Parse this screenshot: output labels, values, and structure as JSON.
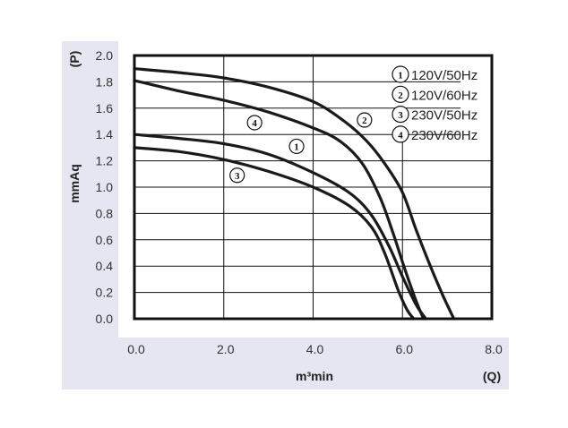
{
  "chart_data": {
    "type": "line",
    "title": "",
    "xlabel": "m³min",
    "xlabel_unit": "(Q)",
    "ylabel": "mmAq",
    "ylabel_unit": "(P)",
    "xlim": [
      0,
      8
    ],
    "ylim": [
      0,
      2
    ],
    "xticks": [
      "0.0",
      "2.0",
      "4.0",
      "6.0",
      "8.0"
    ],
    "yticks": [
      "0.0",
      "0.2",
      "0.4",
      "0.6",
      "0.8",
      "1.0",
      "1.2",
      "1.4",
      "1.6",
      "1.8",
      "2.0"
    ],
    "grid": true,
    "legend_position": "top-right",
    "series": [
      {
        "id": "1",
        "name": "120V/50Hz",
        "marker_at": [
          3.63,
          1.31
        ],
        "points": [
          [
            0,
            1.4
          ],
          [
            1,
            1.37
          ],
          [
            2,
            1.33
          ],
          [
            3,
            1.25
          ],
          [
            4,
            1.11
          ],
          [
            4.8,
            0.96
          ],
          [
            5.3,
            0.79
          ],
          [
            5.7,
            0.55
          ],
          [
            6.0,
            0.32
          ],
          [
            6.3,
            0.11
          ],
          [
            6.52,
            0
          ]
        ]
      },
      {
        "id": "2",
        "name": "120V/60Hz",
        "marker_at": [
          5.15,
          1.51
        ],
        "points": [
          [
            0,
            1.9
          ],
          [
            1,
            1.87
          ],
          [
            2,
            1.83
          ],
          [
            3,
            1.76
          ],
          [
            4,
            1.65
          ],
          [
            4.7,
            1.5
          ],
          [
            5.2,
            1.35
          ],
          [
            5.6,
            1.18
          ],
          [
            6.0,
            0.96
          ],
          [
            6.3,
            0.68
          ],
          [
            6.6,
            0.42
          ],
          [
            6.9,
            0.18
          ],
          [
            7.15,
            0
          ]
        ]
      },
      {
        "id": "3",
        "name": "230V/50Hz",
        "marker_at": [
          2.3,
          1.09
        ],
        "points": [
          [
            0,
            1.3
          ],
          [
            1,
            1.27
          ],
          [
            2,
            1.21
          ],
          [
            3,
            1.12
          ],
          [
            4,
            1.0
          ],
          [
            4.8,
            0.86
          ],
          [
            5.3,
            0.7
          ],
          [
            5.6,
            0.5
          ],
          [
            5.9,
            0.22
          ],
          [
            6.1,
            0.07
          ],
          [
            6.25,
            0
          ]
        ]
      },
      {
        "id": "4",
        "name": "230V/60Hz",
        "marker_at": [
          2.69,
          1.49
        ],
        "points": [
          [
            0,
            1.81
          ],
          [
            1,
            1.73
          ],
          [
            2,
            1.66
          ],
          [
            3,
            1.57
          ],
          [
            4,
            1.45
          ],
          [
            4.6,
            1.35
          ],
          [
            5.1,
            1.18
          ],
          [
            5.5,
            0.92
          ],
          [
            5.8,
            0.64
          ],
          [
            6.05,
            0.38
          ],
          [
            6.3,
            0.14
          ],
          [
            6.47,
            0
          ]
        ]
      }
    ]
  }
}
